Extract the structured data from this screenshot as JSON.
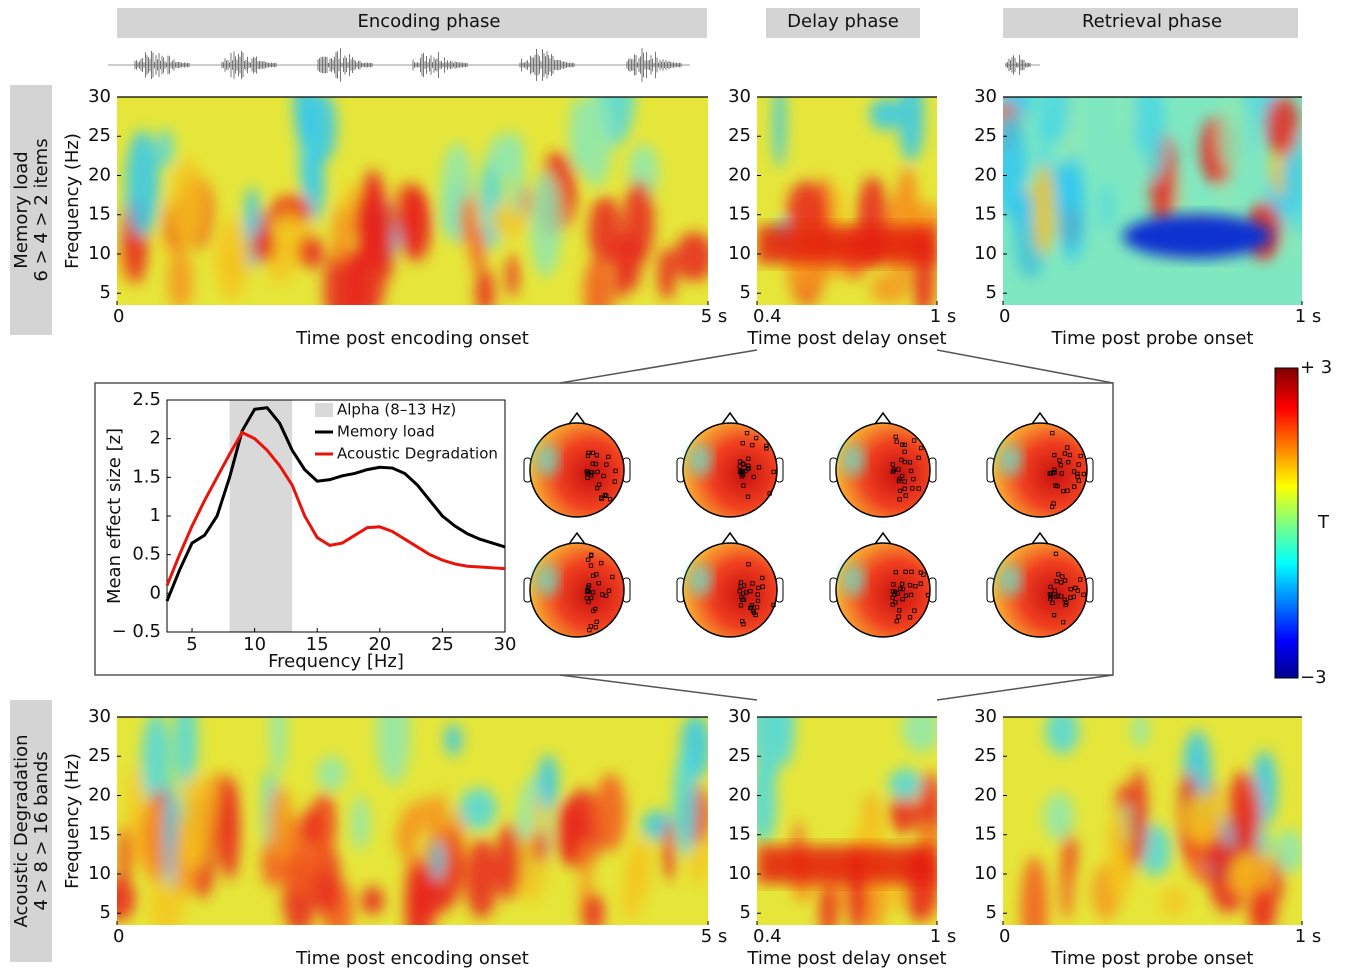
{
  "phases": [
    "Encoding phase",
    "Delay phase",
    "Retrieval phase"
  ],
  "row_labels": [
    [
      "Memory load",
      "6 > 4 > 2 items"
    ],
    [
      "Acoustic Degradation",
      "4 > 8 > 16 bands"
    ]
  ],
  "chart_data": [
    {
      "type": "heatmap",
      "ylabel": "Frequency (Hz)",
      "xlabel": "Time post encoding onset",
      "xlim": [
        0,
        5
      ],
      "xticks": [
        0,
        {
          "value": 5,
          "label": "5 s"
        }
      ],
      "ylim": [
        3.5,
        30
      ],
      "yticks": [
        5,
        10,
        15,
        20,
        25,
        30
      ]
    },
    {
      "type": "heatmap",
      "xlabel": "Time post delay onset",
      "xlim": [
        0.4,
        1
      ],
      "xticks": [
        0.4,
        {
          "value": 1,
          "label": "1 s"
        }
      ],
      "ylim": [
        3.5,
        30
      ],
      "yticks": [
        5,
        10,
        15,
        20,
        25,
        30
      ]
    },
    {
      "type": "heatmap",
      "xlabel": "Time post probe onset",
      "xlim": [
        0,
        1
      ],
      "xticks": [
        0,
        {
          "value": 1,
          "label": "1 s"
        }
      ],
      "ylim": [
        3.5,
        30
      ],
      "yticks": [
        5,
        10,
        15,
        20,
        25,
        30
      ]
    },
    {
      "type": "heatmap",
      "ylabel": "Frequency (Hz)",
      "xlabel": "Time post encoding onset",
      "xlim": [
        0,
        5
      ],
      "xticks": [
        0,
        {
          "value": 5,
          "label": "5 s"
        }
      ],
      "ylim": [
        3.5,
        30
      ],
      "yticks": [
        5,
        10,
        15,
        20,
        25,
        30
      ]
    },
    {
      "type": "heatmap",
      "xlabel": "Time post delay onset",
      "xlim": [
        0.4,
        1
      ],
      "xticks": [
        0.4,
        {
          "value": 1,
          "label": "1 s"
        }
      ],
      "ylim": [
        3.5,
        30
      ],
      "yticks": [
        5,
        10,
        15,
        20,
        25,
        30
      ]
    },
    {
      "type": "heatmap",
      "xlabel": "Time post probe onset",
      "xlim": [
        0,
        1
      ],
      "xticks": [
        0,
        {
          "value": 1,
          "label": "1 s"
        }
      ],
      "ylim": [
        3.5,
        30
      ],
      "yticks": [
        5,
        10,
        15,
        20,
        25,
        30
      ]
    },
    {
      "type": "line",
      "xlabel": "Frequency [Hz]",
      "ylabel": "Mean effect size [z]",
      "x": [
        3,
        4,
        5,
        6,
        7,
        8,
        9,
        10,
        11,
        12,
        13,
        14,
        15,
        16,
        17,
        18,
        19,
        20,
        21,
        22,
        23,
        24,
        25,
        26,
        27,
        28,
        29,
        30
      ],
      "band": [
        8,
        13
      ],
      "band_label": "Alpha (8–13 Hz)",
      "band_color": "#d9d9d9",
      "series": [
        {
          "name": "Memory load",
          "color": "#000000",
          "values": [
            -0.1,
            0.3,
            0.65,
            0.75,
            1.0,
            1.5,
            2.1,
            2.38,
            2.4,
            2.2,
            1.85,
            1.6,
            1.45,
            1.47,
            1.52,
            1.55,
            1.6,
            1.63,
            1.62,
            1.55,
            1.4,
            1.2,
            1.0,
            0.87,
            0.77,
            0.7,
            0.65,
            0.6
          ]
        },
        {
          "name": "Acoustic Degradation",
          "color": "#e8140c",
          "values": [
            0.1,
            0.5,
            0.87,
            1.2,
            1.5,
            1.8,
            2.08,
            2.0,
            1.85,
            1.65,
            1.4,
            1.0,
            0.72,
            0.62,
            0.65,
            0.75,
            0.85,
            0.86,
            0.8,
            0.7,
            0.6,
            0.5,
            0.43,
            0.38,
            0.35,
            0.34,
            0.33,
            0.32
          ]
        }
      ],
      "xlim": [
        3,
        30
      ],
      "xticks": [
        5,
        10,
        15,
        20,
        25,
        30
      ],
      "ylim": [
        -0.5,
        2.5
      ],
      "yticks": [
        {
          "value": -0.5,
          "label": "− 0.5"
        },
        0,
        0.5,
        1,
        1.5,
        2,
        2.5
      ]
    },
    {
      "type": "colorbar",
      "label": "T",
      "colormap": "jet",
      "clim": [
        -3,
        3
      ],
      "ticks": [
        {
          "value": 3,
          "label": "+ 3"
        },
        {
          "value": -3,
          "label": "−3"
        }
      ]
    }
  ]
}
